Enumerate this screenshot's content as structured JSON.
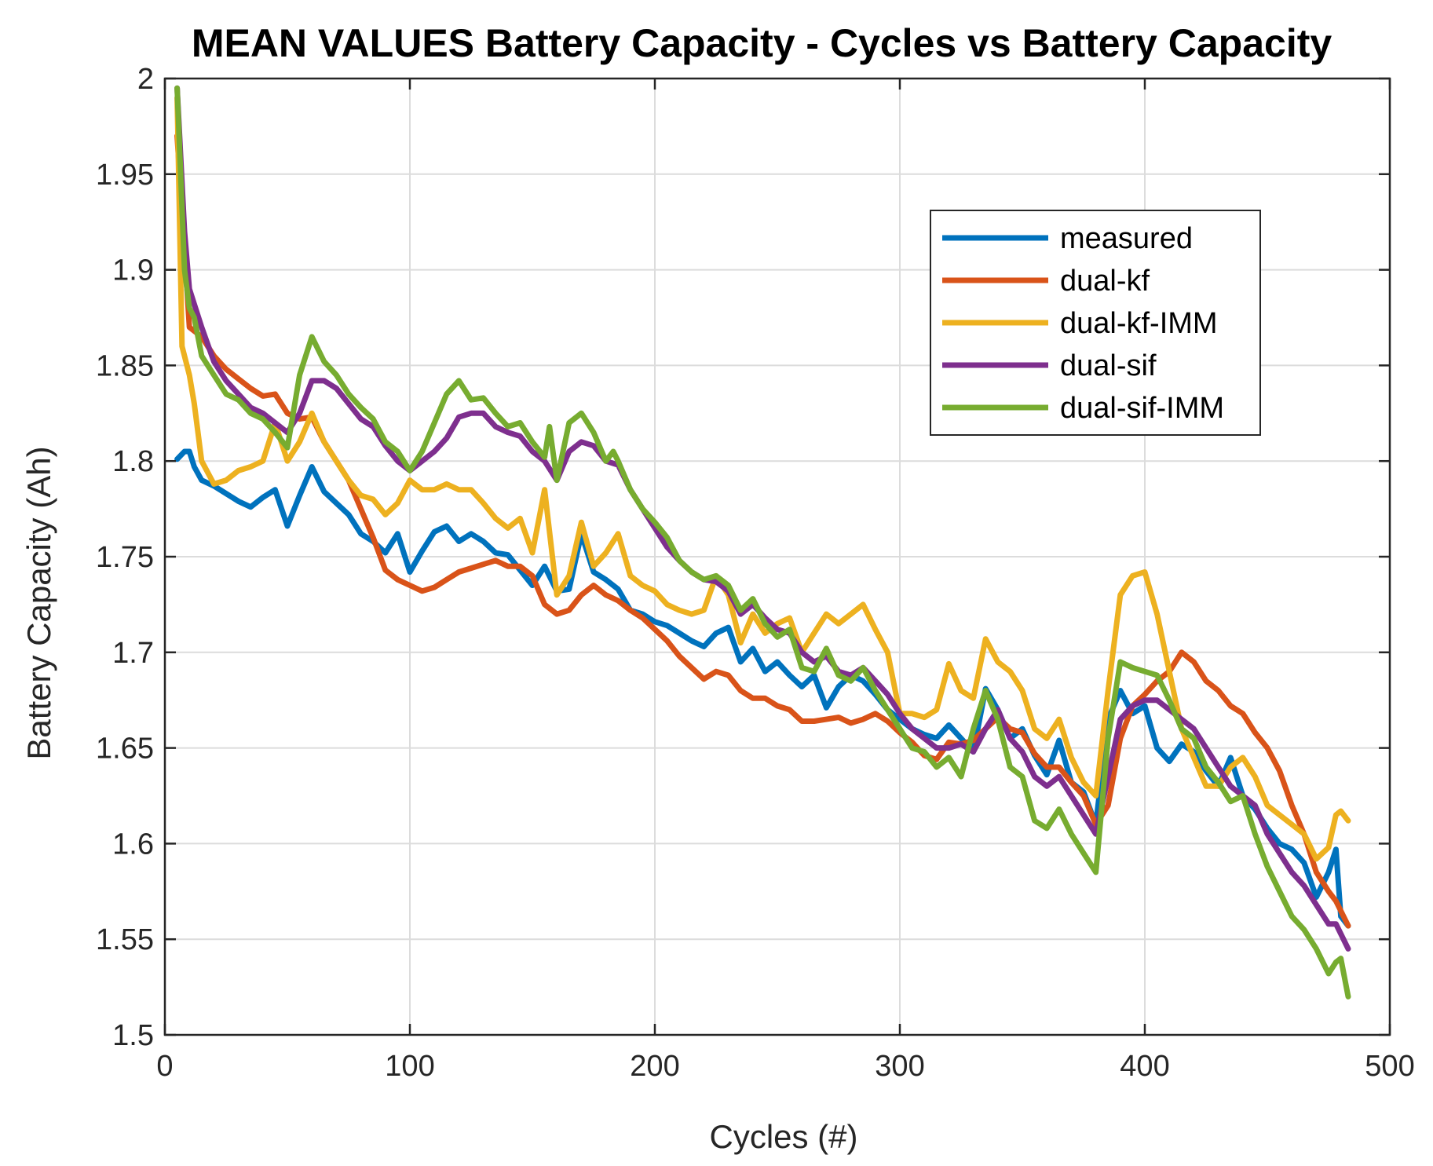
{
  "chart_data": {
    "type": "line",
    "title": "MEAN VALUES Battery Capacity - Cycles vs Battery Capacity",
    "xlabel": "Cycles (#)",
    "ylabel": "Battery Capacity (Ah)",
    "xlim": [
      0,
      500
    ],
    "ylim": [
      1.5,
      2.0
    ],
    "xticks": [
      0,
      100,
      200,
      300,
      400,
      500
    ],
    "xtick_labels": [
      "0",
      "100",
      "200",
      "300",
      "400",
      "500"
    ],
    "yticks": [
      1.5,
      1.55,
      1.6,
      1.65,
      1.7,
      1.75,
      1.8,
      1.85,
      1.9,
      1.95,
      2.0
    ],
    "ytick_labels": [
      "1.5",
      "1.55",
      "1.6",
      "1.65",
      "1.7",
      "1.75",
      "1.8",
      "1.85",
      "1.9",
      "1.95",
      "2"
    ],
    "grid": true,
    "legend_position": "upper-right",
    "series": [
      {
        "name": "measured",
        "color": "#0072BD",
        "x": [
          5,
          8,
          10,
          12,
          15,
          20,
          25,
          30,
          35,
          40,
          45,
          50,
          55,
          60,
          65,
          70,
          75,
          80,
          85,
          90,
          95,
          100,
          105,
          110,
          115,
          120,
          125,
          130,
          135,
          140,
          145,
          150,
          155,
          160,
          165,
          170,
          175,
          180,
          185,
          190,
          195,
          200,
          205,
          210,
          215,
          220,
          225,
          230,
          235,
          240,
          245,
          250,
          255,
          260,
          265,
          270,
          275,
          280,
          285,
          290,
          295,
          300,
          305,
          310,
          315,
          320,
          325,
          330,
          335,
          340,
          345,
          350,
          355,
          360,
          365,
          370,
          375,
          380,
          385,
          390,
          395,
          400,
          405,
          410,
          415,
          420,
          425,
          430,
          435,
          440,
          445,
          450,
          455,
          460,
          465,
          470,
          475,
          478,
          480,
          483
        ],
        "values": [
          1.801,
          1.805,
          1.805,
          1.797,
          1.79,
          1.787,
          1.783,
          1.779,
          1.776,
          1.781,
          1.785,
          1.766,
          1.782,
          1.797,
          1.784,
          1.778,
          1.772,
          1.762,
          1.758,
          1.752,
          1.762,
          1.742,
          1.753,
          1.763,
          1.766,
          1.758,
          1.762,
          1.758,
          1.752,
          1.751,
          1.743,
          1.735,
          1.745,
          1.732,
          1.733,
          1.762,
          1.742,
          1.738,
          1.733,
          1.722,
          1.72,
          1.716,
          1.714,
          1.71,
          1.706,
          1.703,
          1.71,
          1.713,
          1.695,
          1.702,
          1.69,
          1.695,
          1.688,
          1.682,
          1.688,
          1.671,
          1.682,
          1.688,
          1.685,
          1.678,
          1.67,
          1.665,
          1.66,
          1.657,
          1.655,
          1.662,
          1.655,
          1.648,
          1.681,
          1.67,
          1.655,
          1.66,
          1.646,
          1.636,
          1.654,
          1.632,
          1.627,
          1.61,
          1.665,
          1.68,
          1.668,
          1.672,
          1.65,
          1.643,
          1.652,
          1.648,
          1.638,
          1.63,
          1.645,
          1.625,
          1.618,
          1.608,
          1.6,
          1.597,
          1.59,
          1.572,
          1.585,
          1.597,
          1.562,
          1.557
        ]
      },
      {
        "name": "dual-kf",
        "color": "#D95319",
        "x": [
          5,
          8,
          10,
          15,
          20,
          25,
          30,
          35,
          40,
          45,
          50,
          55,
          60,
          65,
          70,
          75,
          80,
          85,
          90,
          95,
          100,
          105,
          110,
          115,
          120,
          125,
          130,
          135,
          140,
          145,
          150,
          155,
          160,
          165,
          170,
          175,
          180,
          185,
          190,
          195,
          200,
          205,
          210,
          215,
          220,
          225,
          230,
          235,
          240,
          245,
          250,
          255,
          260,
          265,
          270,
          275,
          280,
          285,
          290,
          295,
          300,
          305,
          310,
          315,
          320,
          325,
          330,
          335,
          340,
          345,
          350,
          355,
          360,
          365,
          370,
          375,
          380,
          385,
          390,
          395,
          400,
          405,
          410,
          415,
          420,
          425,
          430,
          435,
          440,
          445,
          450,
          455,
          460,
          465,
          470,
          475,
          478,
          483
        ],
        "values": [
          1.97,
          1.91,
          1.87,
          1.865,
          1.855,
          1.848,
          1.843,
          1.838,
          1.834,
          1.835,
          1.825,
          1.822,
          1.823,
          1.81,
          1.8,
          1.79,
          1.775,
          1.76,
          1.743,
          1.738,
          1.735,
          1.732,
          1.734,
          1.738,
          1.742,
          1.744,
          1.746,
          1.748,
          1.745,
          1.745,
          1.74,
          1.725,
          1.72,
          1.722,
          1.73,
          1.735,
          1.73,
          1.727,
          1.722,
          1.718,
          1.712,
          1.706,
          1.698,
          1.692,
          1.686,
          1.69,
          1.688,
          1.68,
          1.676,
          1.676,
          1.672,
          1.67,
          1.664,
          1.664,
          1.665,
          1.666,
          1.663,
          1.665,
          1.668,
          1.664,
          1.658,
          1.653,
          1.646,
          1.644,
          1.653,
          1.652,
          1.654,
          1.66,
          1.666,
          1.66,
          1.658,
          1.647,
          1.64,
          1.64,
          1.632,
          1.625,
          1.61,
          1.62,
          1.655,
          1.672,
          1.678,
          1.685,
          1.69,
          1.7,
          1.695,
          1.685,
          1.68,
          1.672,
          1.668,
          1.658,
          1.65,
          1.638,
          1.62,
          1.605,
          1.585,
          1.575,
          1.57,
          1.557
        ]
      },
      {
        "name": "dual-kf-IMM",
        "color": "#EDB120",
        "x": [
          5,
          7,
          10,
          12,
          15,
          20,
          25,
          30,
          35,
          40,
          45,
          50,
          55,
          60,
          65,
          70,
          75,
          80,
          85,
          90,
          95,
          100,
          105,
          110,
          115,
          120,
          125,
          130,
          135,
          140,
          145,
          150,
          155,
          160,
          165,
          170,
          175,
          180,
          185,
          190,
          195,
          200,
          205,
          210,
          215,
          220,
          225,
          230,
          235,
          240,
          245,
          250,
          255,
          260,
          265,
          270,
          275,
          280,
          285,
          290,
          295,
          300,
          305,
          310,
          315,
          320,
          325,
          330,
          335,
          340,
          345,
          350,
          355,
          360,
          365,
          370,
          375,
          380,
          385,
          390,
          395,
          400,
          405,
          410,
          415,
          420,
          425,
          430,
          435,
          440,
          445,
          450,
          455,
          460,
          465,
          470,
          475,
          478,
          480,
          483
        ],
        "values": [
          1.99,
          1.86,
          1.845,
          1.83,
          1.8,
          1.788,
          1.79,
          1.795,
          1.797,
          1.8,
          1.82,
          1.8,
          1.81,
          1.825,
          1.81,
          1.8,
          1.79,
          1.782,
          1.78,
          1.772,
          1.778,
          1.79,
          1.785,
          1.785,
          1.788,
          1.785,
          1.785,
          1.778,
          1.77,
          1.765,
          1.77,
          1.752,
          1.785,
          1.73,
          1.74,
          1.768,
          1.745,
          1.752,
          1.762,
          1.74,
          1.735,
          1.732,
          1.725,
          1.722,
          1.72,
          1.722,
          1.74,
          1.73,
          1.705,
          1.72,
          1.71,
          1.715,
          1.718,
          1.7,
          1.71,
          1.72,
          1.715,
          1.72,
          1.725,
          1.712,
          1.7,
          1.668,
          1.668,
          1.666,
          1.67,
          1.694,
          1.68,
          1.676,
          1.707,
          1.695,
          1.69,
          1.68,
          1.66,
          1.655,
          1.665,
          1.645,
          1.632,
          1.625,
          1.68,
          1.73,
          1.74,
          1.742,
          1.72,
          1.69,
          1.66,
          1.645,
          1.63,
          1.63,
          1.64,
          1.645,
          1.635,
          1.62,
          1.615,
          1.61,
          1.605,
          1.592,
          1.598,
          1.615,
          1.617,
          1.612
        ]
      },
      {
        "name": "dual-sif",
        "color": "#7E2F8E",
        "x": [
          5,
          8,
          10,
          15,
          20,
          25,
          30,
          35,
          40,
          45,
          50,
          55,
          60,
          65,
          70,
          75,
          80,
          85,
          90,
          95,
          100,
          105,
          110,
          115,
          120,
          125,
          130,
          135,
          140,
          145,
          150,
          155,
          160,
          165,
          170,
          175,
          180,
          185,
          190,
          195,
          200,
          205,
          210,
          215,
          220,
          225,
          230,
          235,
          240,
          245,
          250,
          255,
          260,
          265,
          270,
          275,
          280,
          285,
          290,
          295,
          300,
          305,
          310,
          315,
          320,
          325,
          330,
          335,
          340,
          345,
          350,
          355,
          360,
          365,
          370,
          375,
          380,
          385,
          390,
          395,
          400,
          405,
          410,
          415,
          420,
          425,
          430,
          435,
          440,
          445,
          450,
          455,
          460,
          465,
          470,
          475,
          478,
          483
        ],
        "values": [
          1.995,
          1.92,
          1.89,
          1.87,
          1.852,
          1.842,
          1.835,
          1.828,
          1.825,
          1.82,
          1.815,
          1.825,
          1.842,
          1.842,
          1.838,
          1.83,
          1.822,
          1.818,
          1.808,
          1.8,
          1.795,
          1.8,
          1.805,
          1.812,
          1.823,
          1.825,
          1.825,
          1.818,
          1.815,
          1.813,
          1.805,
          1.8,
          1.79,
          1.805,
          1.81,
          1.808,
          1.8,
          1.798,
          1.785,
          1.775,
          1.765,
          1.755,
          1.748,
          1.742,
          1.738,
          1.737,
          1.732,
          1.72,
          1.725,
          1.718,
          1.712,
          1.71,
          1.7,
          1.695,
          1.698,
          1.69,
          1.688,
          1.692,
          1.685,
          1.678,
          1.668,
          1.66,
          1.655,
          1.65,
          1.65,
          1.652,
          1.648,
          1.66,
          1.67,
          1.655,
          1.648,
          1.635,
          1.63,
          1.635,
          1.625,
          1.615,
          1.605,
          1.635,
          1.665,
          1.672,
          1.675,
          1.675,
          1.67,
          1.665,
          1.66,
          1.65,
          1.64,
          1.63,
          1.625,
          1.62,
          1.605,
          1.595,
          1.585,
          1.578,
          1.568,
          1.558,
          1.558,
          1.545
        ]
      },
      {
        "name": "dual-sif-IMM",
        "color": "#77AC30",
        "x": [
          5,
          8,
          10,
          12,
          15,
          20,
          25,
          30,
          35,
          40,
          45,
          50,
          55,
          60,
          65,
          70,
          75,
          80,
          85,
          90,
          95,
          100,
          105,
          110,
          115,
          120,
          125,
          130,
          135,
          140,
          145,
          150,
          155,
          157,
          160,
          165,
          170,
          175,
          180,
          183,
          185,
          190,
          195,
          200,
          205,
          210,
          215,
          220,
          225,
          230,
          235,
          240,
          245,
          250,
          255,
          260,
          265,
          270,
          275,
          280,
          285,
          290,
          295,
          300,
          305,
          310,
          315,
          320,
          325,
          330,
          335,
          340,
          345,
          350,
          355,
          360,
          365,
          370,
          375,
          380,
          385,
          390,
          395,
          400,
          405,
          410,
          415,
          420,
          425,
          430,
          435,
          440,
          445,
          450,
          455,
          460,
          465,
          470,
          475,
          478,
          480,
          483
        ],
        "values": [
          1.995,
          1.9,
          1.88,
          1.875,
          1.855,
          1.845,
          1.835,
          1.832,
          1.825,
          1.822,
          1.815,
          1.807,
          1.845,
          1.865,
          1.852,
          1.845,
          1.835,
          1.828,
          1.822,
          1.81,
          1.805,
          1.795,
          1.805,
          1.82,
          1.835,
          1.842,
          1.832,
          1.833,
          1.825,
          1.818,
          1.82,
          1.81,
          1.802,
          1.818,
          1.79,
          1.82,
          1.825,
          1.815,
          1.8,
          1.805,
          1.8,
          1.785,
          1.775,
          1.768,
          1.76,
          1.748,
          1.742,
          1.738,
          1.74,
          1.735,
          1.722,
          1.728,
          1.715,
          1.708,
          1.712,
          1.692,
          1.69,
          1.702,
          1.688,
          1.685,
          1.692,
          1.68,
          1.67,
          1.66,
          1.65,
          1.648,
          1.64,
          1.645,
          1.635,
          1.66,
          1.68,
          1.665,
          1.64,
          1.635,
          1.612,
          1.608,
          1.618,
          1.605,
          1.595,
          1.585,
          1.655,
          1.695,
          1.692,
          1.69,
          1.688,
          1.675,
          1.66,
          1.655,
          1.64,
          1.632,
          1.622,
          1.625,
          1.605,
          1.588,
          1.575,
          1.562,
          1.555,
          1.545,
          1.532,
          1.538,
          1.54,
          1.52
        ]
      }
    ]
  }
}
